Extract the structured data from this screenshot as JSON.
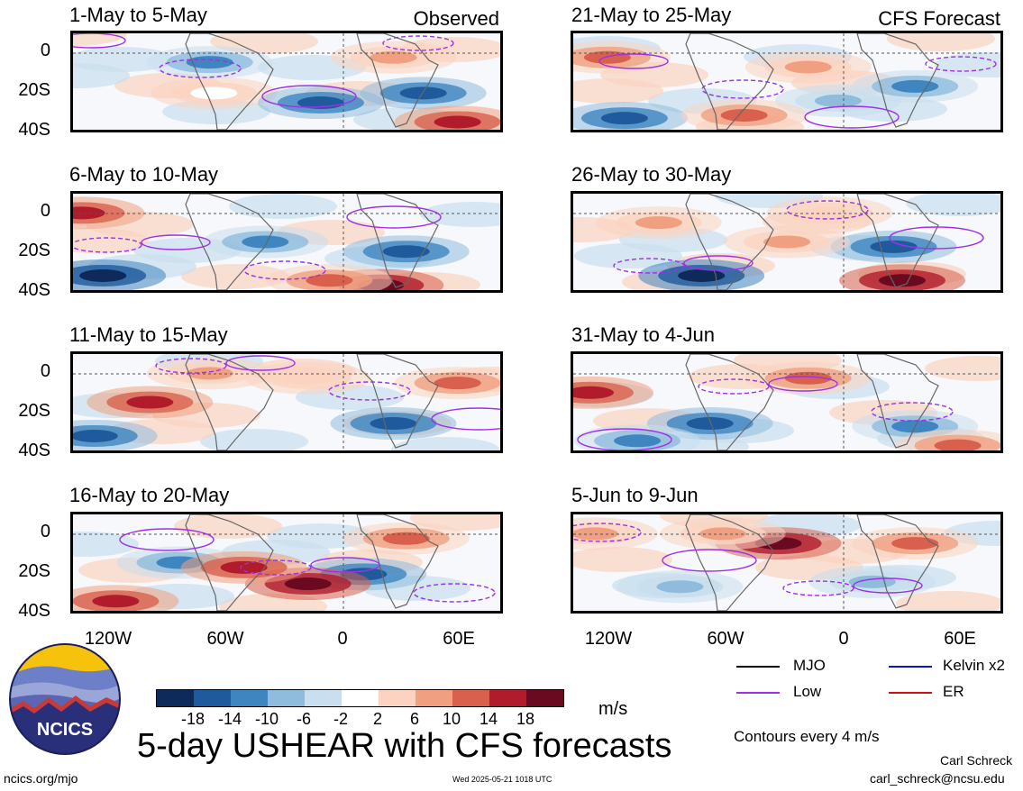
{
  "panels": [
    {
      "title": "1-May to 5-May",
      "tag": "Observed"
    },
    {
      "title": "21-May to 25-May",
      "tag": "CFS Forecast"
    },
    {
      "title": "6-May to 10-May",
      "tag": ""
    },
    {
      "title": "26-May to 30-May",
      "tag": ""
    },
    {
      "title": "11-May to 15-May",
      "tag": ""
    },
    {
      "title": "31-May to 4-Jun",
      "tag": ""
    },
    {
      "title": "16-May to 20-May",
      "tag": ""
    },
    {
      "title": "5-Jun to 9-Jun",
      "tag": ""
    }
  ],
  "y_ticks": [
    "0",
    "20S",
    "40S"
  ],
  "x_ticks": [
    "120W",
    "60W",
    "0",
    "60E"
  ],
  "legend": {
    "mjo": "MJO",
    "kelvin": "Kelvin x2",
    "low": "Low",
    "er": "ER",
    "colors": {
      "mjo": "#000000",
      "kelvin": "#1010d0",
      "low": "#a030e8",
      "er": "#d01010"
    }
  },
  "colorbar": {
    "levels": [
      "-18",
      "-14",
      "-10",
      "-6",
      "-2",
      "2",
      "6",
      "10",
      "14",
      "18"
    ],
    "colors": [
      "#0d2a5a",
      "#1f5a9c",
      "#3f85c0",
      "#8fbcdc",
      "#c9deee",
      "#ffffff",
      "#fbd3c0",
      "#f0a080",
      "#d8604c",
      "#b01c2c",
      "#6a0a20"
    ],
    "unit": "m/s"
  },
  "footer": {
    "logo_text": "NCICS",
    "main_title": "5-day USHEAR with CFS forecasts",
    "contours_note": "Contours every 4 m/s",
    "url": "ncics.org/mjo",
    "timestamp": "Wed 2025-05-21 1018 UTC",
    "author": "Carl Schreck",
    "email": "carl_schreck@ncsu.edu"
  }
}
